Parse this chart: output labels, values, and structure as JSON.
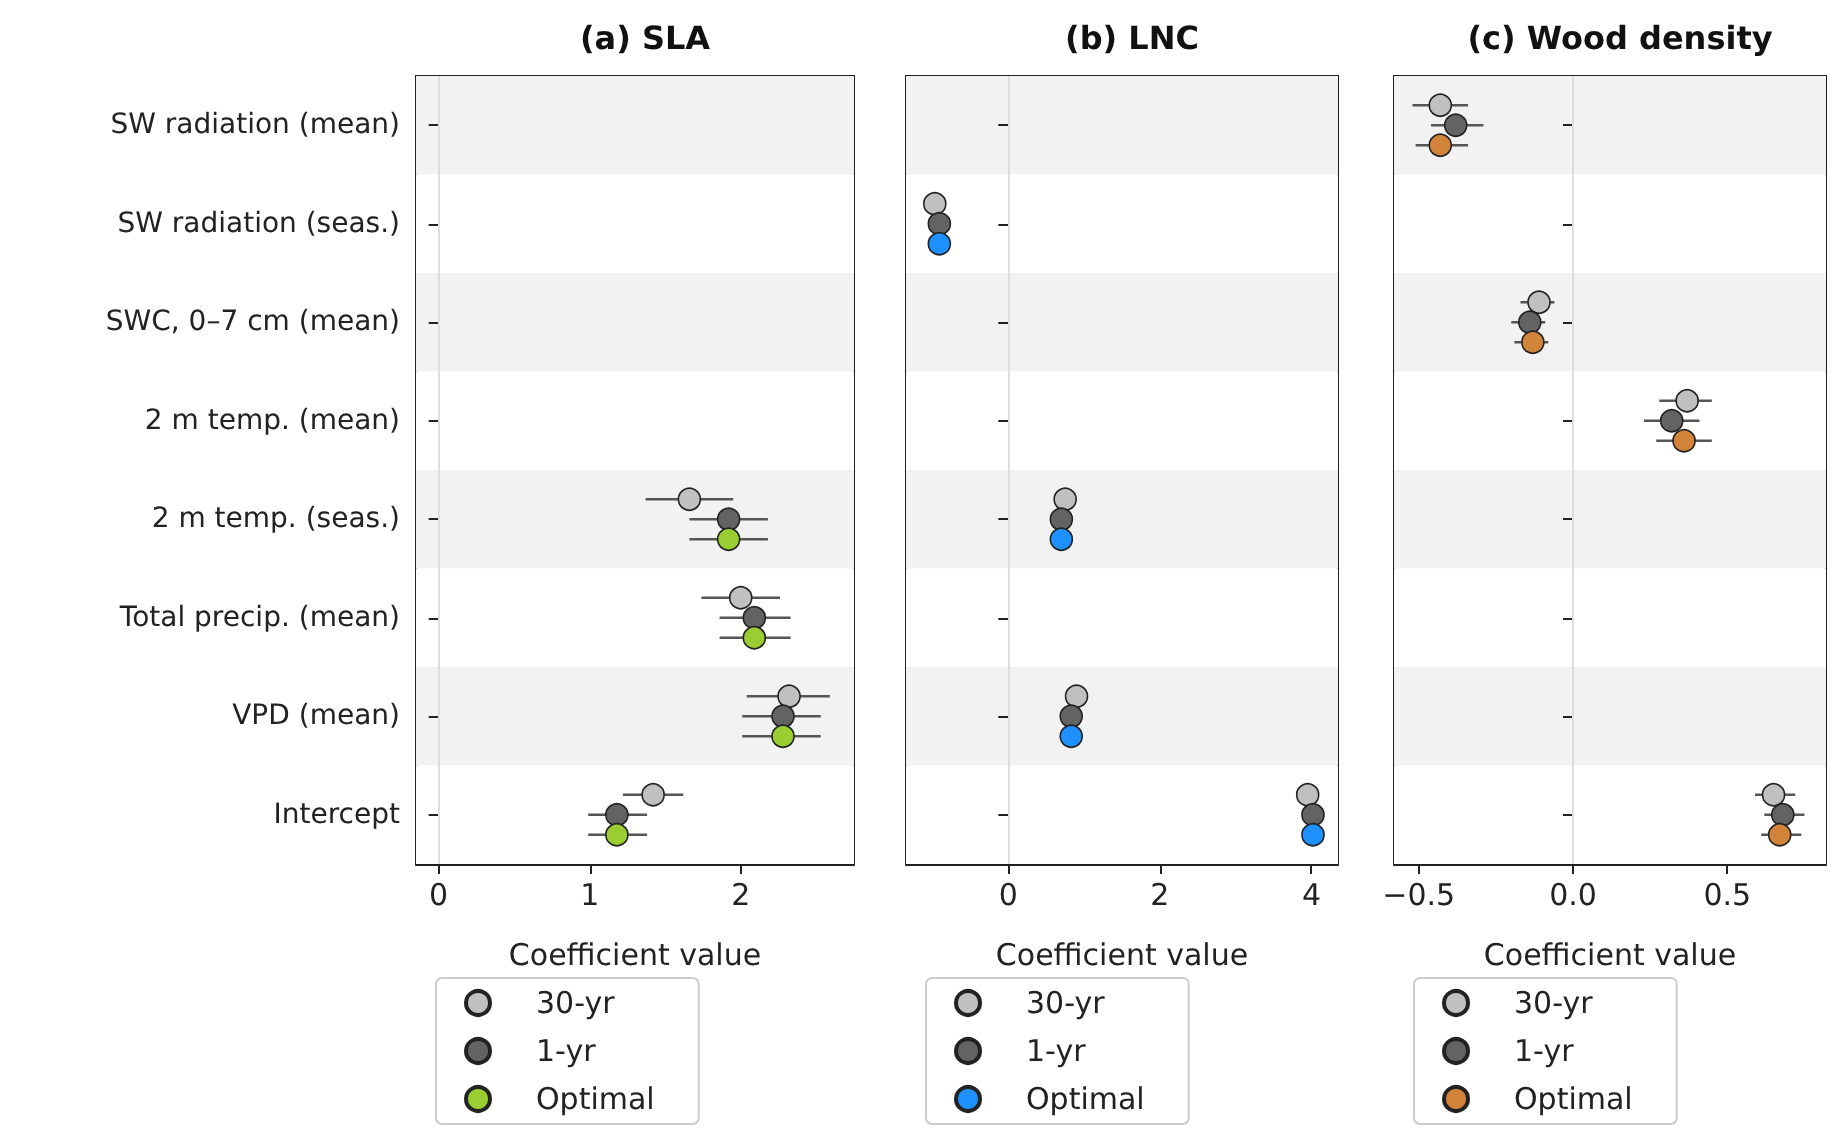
{
  "chart_data": [
    {
      "type": "scatter",
      "title": "(a) SLA",
      "xlabel": "Coefficient value",
      "orientation": "horizontal",
      "marker": "circle",
      "legend": "bottom",
      "categories": [
        "SW radiation (mean)",
        "SW radiation (seas.)",
        "SWC, 0–7 cm (mean)",
        "2 m temp. (mean)",
        "2 m temp. (seas.)",
        "Total precip. (mean)",
        "VPD (mean)",
        "Intercept"
      ],
      "xlim": [
        -0.15,
        2.75
      ],
      "xticks": [
        0,
        1,
        2
      ],
      "ref_lines": [
        {
          "axis": "x",
          "value": 0,
          "color": "#dddddd"
        }
      ],
      "series": [
        {
          "name": "30-yr",
          "color": "#c0c0c0",
          "values": [
            null,
            null,
            null,
            null,
            1.66,
            2.0,
            2.32,
            1.42
          ],
          "errors": [
            null,
            null,
            null,
            null,
            [
              1.37,
              1.95
            ],
            [
              1.74,
              2.26
            ],
            [
              2.04,
              2.59
            ],
            [
              1.22,
              1.62
            ]
          ]
        },
        {
          "name": "1-yr",
          "color": "#636363",
          "values": [
            null,
            null,
            null,
            null,
            1.92,
            2.09,
            2.28,
            1.18
          ],
          "errors": [
            null,
            null,
            null,
            null,
            [
              1.66,
              2.18
            ],
            [
              1.86,
              2.33
            ],
            [
              2.01,
              2.53
            ],
            [
              0.99,
              1.38
            ]
          ]
        },
        {
          "name": "Optimal",
          "color": "#9acd32",
          "values": [
            null,
            null,
            null,
            null,
            1.92,
            2.09,
            2.28,
            1.18
          ],
          "errors": [
            null,
            null,
            null,
            null,
            [
              1.66,
              2.18
            ],
            [
              1.86,
              2.33
            ],
            [
              2.01,
              2.53
            ],
            [
              0.99,
              1.38
            ]
          ]
        }
      ]
    },
    {
      "type": "scatter",
      "title": "(b) LNC",
      "xlabel": "Coefficient value",
      "orientation": "horizontal",
      "marker": "circle",
      "legend": "bottom",
      "tick_labels": "x",
      "categories": [
        null,
        null,
        null,
        null,
        null,
        null,
        null,
        null
      ],
      "xlim": [
        -1.35,
        4.35
      ],
      "xticks": [
        0,
        2,
        4
      ],
      "ref_lines": [
        {
          "axis": "x",
          "value": 0,
          "color": "#dddddd"
        }
      ],
      "series": [
        {
          "name": "30-yr",
          "color": "#c0c0c0",
          "values": [
            null,
            -0.97,
            null,
            null,
            0.75,
            null,
            0.9,
            3.95
          ]
        },
        {
          "name": "1-yr",
          "color": "#636363",
          "values": [
            null,
            -0.91,
            null,
            null,
            0.7,
            null,
            0.83,
            4.02
          ]
        },
        {
          "name": "Optimal",
          "color": "#1e90ff",
          "values": [
            null,
            -0.91,
            null,
            null,
            0.7,
            null,
            0.83,
            4.02
          ]
        }
      ]
    },
    {
      "type": "scatter",
      "title": "(c) Wood density",
      "xlabel": "Coefficient value",
      "orientation": "horizontal",
      "marker": "circle",
      "legend": "bottom",
      "tick_labels": "x",
      "categories": [
        null,
        null,
        null,
        null,
        null,
        null,
        null,
        null
      ],
      "xlim": [
        -0.58,
        0.82
      ],
      "xticks": [
        {
          "value": -0.5,
          "label": "−0.5"
        },
        {
          "value": 0,
          "label": "0.0"
        },
        {
          "value": 0.5,
          "label": "0.5"
        }
      ],
      "ref_lines": [
        {
          "axis": "x",
          "value": 0,
          "color": "#dddddd"
        }
      ],
      "series": [
        {
          "name": "30-yr",
          "color": "#c0c0c0",
          "values": [
            -0.43,
            null,
            -0.11,
            0.37,
            null,
            null,
            null,
            0.65
          ],
          "errors": [
            [
              -0.52,
              -0.34
            ],
            null,
            [
              -0.17,
              -0.06
            ],
            [
              0.28,
              0.45
            ],
            null,
            null,
            null,
            [
              0.59,
              0.72
            ]
          ]
        },
        {
          "name": "1-yr",
          "color": "#636363",
          "values": [
            -0.38,
            null,
            -0.14,
            0.32,
            null,
            null,
            null,
            0.68
          ],
          "errors": [
            [
              -0.46,
              -0.29
            ],
            null,
            [
              -0.2,
              -0.09
            ],
            [
              0.23,
              0.41
            ],
            null,
            null,
            null,
            [
              0.62,
              0.75
            ]
          ]
        },
        {
          "name": "Optimal",
          "color": "#d2843a",
          "values": [
            -0.43,
            null,
            -0.13,
            0.36,
            null,
            null,
            null,
            0.67
          ],
          "errors": [
            [
              -0.51,
              -0.34
            ],
            null,
            [
              -0.19,
              -0.08
            ],
            [
              0.27,
              0.45
            ],
            null,
            null,
            null,
            [
              0.61,
              0.74
            ]
          ]
        }
      ]
    }
  ]
}
